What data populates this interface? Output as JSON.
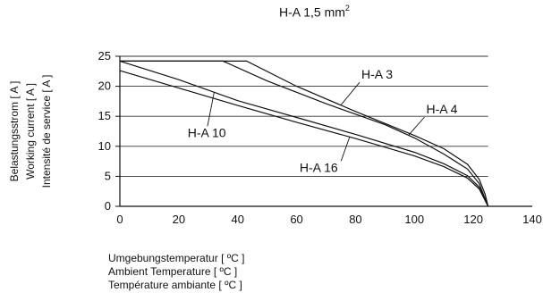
{
  "chart_data": {
    "type": "line",
    "title": "H-A  1,5 mm",
    "title_superscript": "2",
    "xlabel": [
      "Umgebungstemperatur [ ºC ]",
      "Ambient Temperature [ ºC ]",
      "Température ambiante [ ºC ]"
    ],
    "ylabel": [
      "Belastungsstrom [ A ]",
      "Working current [ A ]",
      "Intensité de service [ A ]"
    ],
    "xlim": [
      0,
      140
    ],
    "ylim": [
      0,
      25
    ],
    "xticks": [
      0,
      20,
      40,
      60,
      80,
      100,
      120,
      140
    ],
    "yticks": [
      0,
      5,
      10,
      15,
      20,
      25
    ],
    "grid": "horizontal",
    "series": [
      {
        "name": "H-A 3",
        "points": [
          [
            0,
            24.2
          ],
          [
            43,
            24.2
          ],
          [
            60,
            20
          ],
          [
            80,
            15.8
          ],
          [
            100,
            11.8
          ],
          [
            110,
            9.6
          ],
          [
            118,
            7
          ],
          [
            122,
            4.5
          ],
          [
            124,
            2
          ],
          [
            125,
            0
          ]
        ]
      },
      {
        "name": "H-A 4",
        "points": [
          [
            0,
            24.2
          ],
          [
            35,
            24.2
          ],
          [
            50,
            20.9
          ],
          [
            70,
            17.1
          ],
          [
            90,
            13.6
          ],
          [
            100,
            11.4
          ],
          [
            110,
            8.7
          ],
          [
            118,
            6.2
          ],
          [
            122,
            3.8
          ],
          [
            125,
            0
          ]
        ]
      },
      {
        "name": "H-A 10",
        "points": [
          [
            0,
            24.2
          ],
          [
            20,
            21.1
          ],
          [
            40,
            17.6
          ],
          [
            60,
            14.8
          ],
          [
            80,
            12
          ],
          [
            100,
            9
          ],
          [
            110,
            7.1
          ],
          [
            118,
            5.1
          ],
          [
            122,
            3.2
          ],
          [
            125,
            0
          ]
        ]
      },
      {
        "name": "H-A 16",
        "points": [
          [
            0,
            22.6
          ],
          [
            20,
            19.7
          ],
          [
            40,
            16.8
          ],
          [
            60,
            14
          ],
          [
            80,
            11.3
          ],
          [
            100,
            8.4
          ],
          [
            110,
            6.6
          ],
          [
            118,
            4.7
          ],
          [
            122,
            2.9
          ],
          [
            125,
            0
          ]
        ]
      }
    ],
    "annotations": [
      {
        "text": "H-A 3",
        "series": "H-A 3",
        "pointer_x": 75,
        "label_x": 82,
        "label_y": 22
      },
      {
        "text": "H-A 4",
        "series": "H-A 4",
        "pointer_x": 98,
        "label_x": 104,
        "label_y": 16.2
      },
      {
        "text": "H-A 10",
        "series": "H-A 10",
        "pointer_x": 32,
        "label_x": 23,
        "label_y": 12.3
      },
      {
        "text": "H-A 16",
        "series": "H-A 16",
        "pointer_x": 78,
        "label_x": 61,
        "label_y": 6.5
      }
    ]
  }
}
